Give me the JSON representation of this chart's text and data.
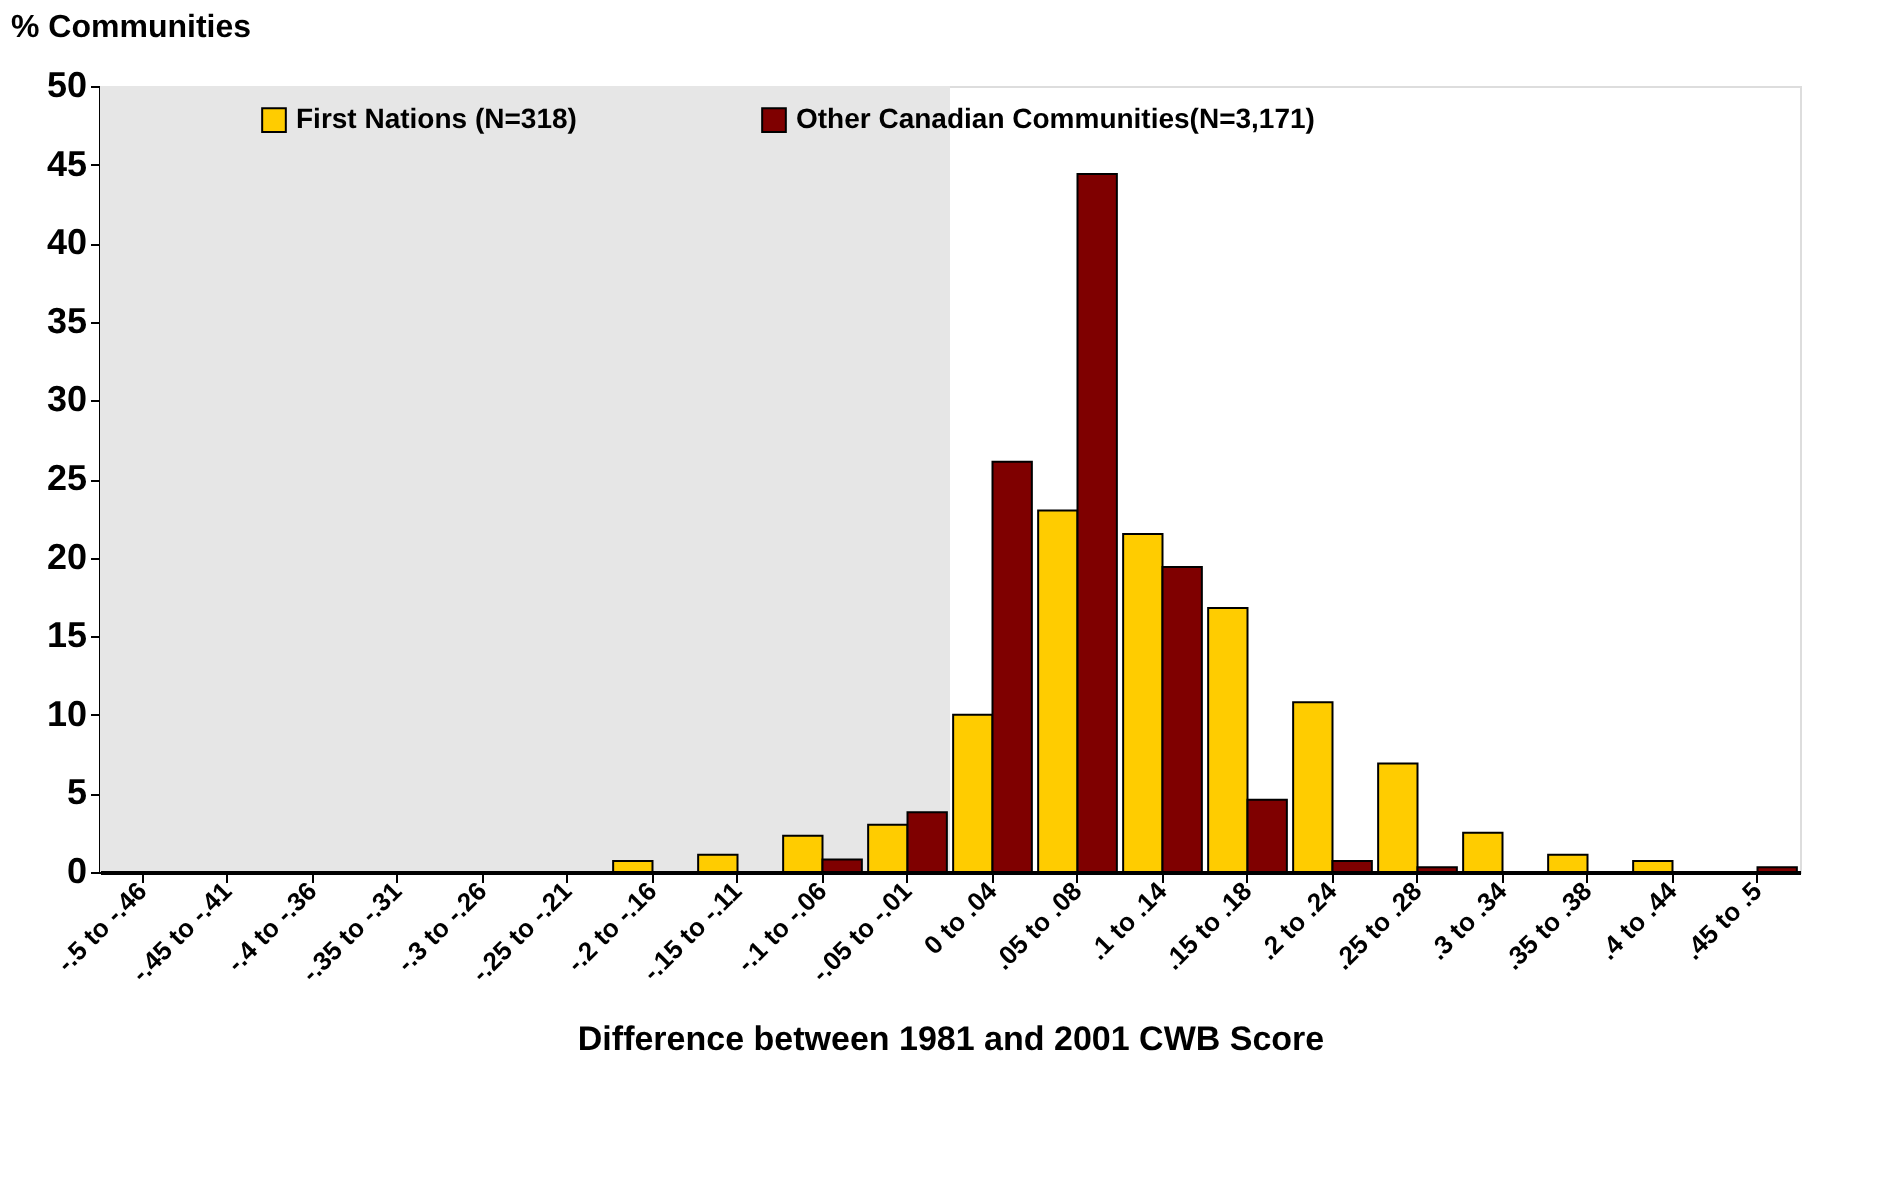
{
  "chart_data": {
    "type": "bar",
    "ylabel": "% Communities",
    "xlabel": "Difference between 1981 and 2001 CWB Score",
    "categories": [
      "-.5 to -.46",
      "-.45 to -.41",
      "-.4 to -.36",
      "-.35 to -.31",
      "-.3 to -.26",
      "-.25 to -.21",
      "-.2 to -.16",
      "-.15 to -.11",
      "-.1 to -.06",
      "-.05 to -.01",
      "0 to .04",
      ".05 to .08",
      ".1 to .14",
      ".15 to .18",
      ".2 to .24",
      ".25 to .28",
      ".3 to .34",
      ".35 to .38",
      ".4 to .44",
      ".45 to .5"
    ],
    "series": [
      {
        "name": "First Nations (N=318)",
        "color": "#ffcc00",
        "values": [
          0,
          0,
          0,
          0,
          0,
          0,
          0.7,
          1.1,
          2.3,
          3.0,
          10.0,
          23.0,
          21.5,
          16.8,
          10.8,
          6.9,
          2.5,
          1.1,
          0.7,
          0
        ]
      },
      {
        "name": "Other Canadian Communities(N=3,171)",
        "color": "#7f0000",
        "values": [
          0,
          0,
          0,
          0,
          0,
          0,
          0,
          0,
          0.8,
          3.8,
          26.1,
          44.4,
          19.4,
          4.6,
          0.7,
          0.3,
          0,
          0,
          0,
          0.3
        ]
      }
    ],
    "ylim": [
      0,
      50
    ],
    "yticks": [
      0,
      5,
      10,
      15,
      20,
      25,
      30,
      35,
      40,
      45,
      50
    ],
    "bands": [
      {
        "axis": "x",
        "from": "-.5 to -.46",
        "to": "-.05 to -.01",
        "color": "#e6e6e6"
      }
    ],
    "grid": false,
    "legend": "top"
  }
}
